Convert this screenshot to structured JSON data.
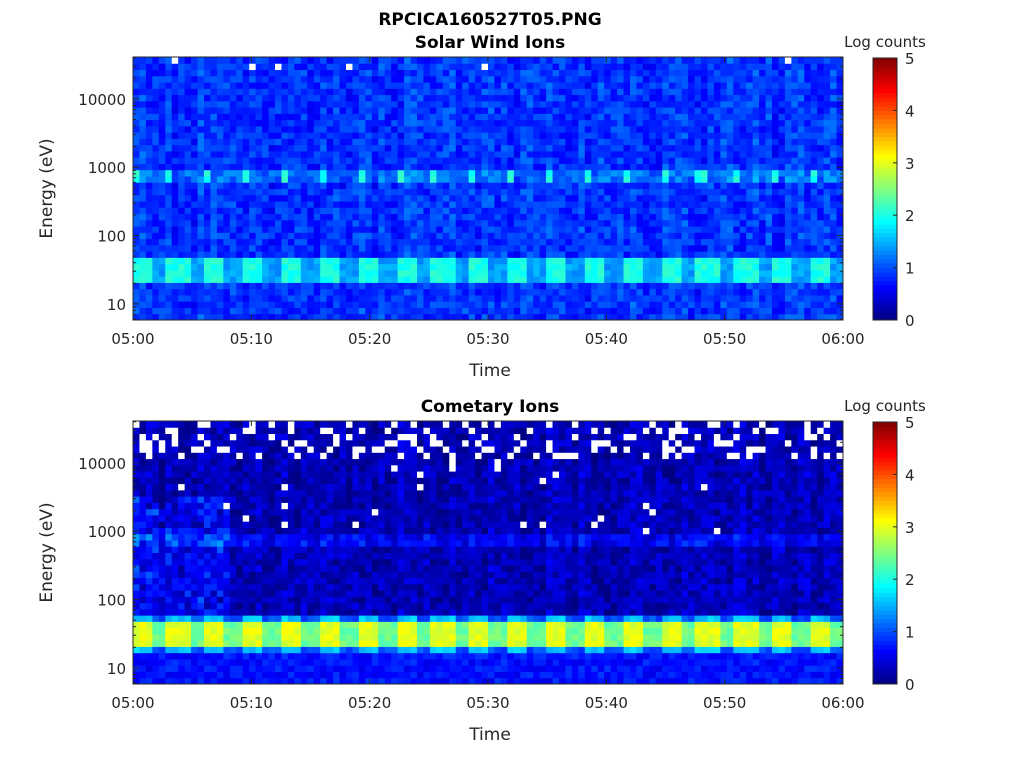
{
  "figure_title": "RPCICA160527T05.PNG",
  "chart_data": [
    {
      "type": "heatmap",
      "title": "Solar Wind Ions",
      "xlabel": "Time",
      "ylabel": "Energy (eV)",
      "x_ticks": [
        "05:00",
        "05:10",
        "05:20",
        "05:30",
        "05:40",
        "05:50",
        "06:00"
      ],
      "xlim_minutes": [
        0,
        60
      ],
      "y_scale": "log",
      "ylim": [
        5.8,
        41000
      ],
      "y_ticks": [
        "10",
        "100",
        "1000",
        "10000"
      ],
      "y_tick_values": [
        10,
        100,
        1000,
        10000
      ],
      "colorbar": {
        "label": "Log counts",
        "range": [
          0,
          5
        ],
        "ticks": [
          "0",
          "1",
          "2",
          "3",
          "4",
          "5"
        ],
        "colormap": "jet"
      },
      "background_log_counts": 0.75,
      "pulse_period_minutes": 3.2,
      "features": [
        {
          "name": "solar wind peak",
          "energy_range_eV": [
            600,
            900
          ],
          "log_counts": 2.0,
          "pulsed": true
        },
        {
          "name": "low energy band",
          "energy_range_eV": [
            22,
            45
          ],
          "log_counts": 2.0,
          "pulsed": true
        },
        {
          "name": "low energy floor",
          "energy_range_eV": [
            5.8,
            20
          ],
          "log_counts": 0.6,
          "pulsed": false
        }
      ],
      "missing_data_above_eV": null
    },
    {
      "type": "heatmap",
      "title": "Cometary Ions",
      "xlabel": "Time",
      "ylabel": "Energy (eV)",
      "x_ticks": [
        "05:00",
        "05:10",
        "05:20",
        "05:30",
        "05:40",
        "05:50",
        "06:00"
      ],
      "xlim_minutes": [
        0,
        60
      ],
      "y_scale": "log",
      "ylim": [
        5.8,
        41000
      ],
      "y_ticks": [
        "10",
        "100",
        "1000",
        "10000"
      ],
      "y_tick_values": [
        10,
        100,
        1000,
        10000
      ],
      "colorbar": {
        "label": "Log counts",
        "range": [
          0,
          5
        ],
        "ticks": [
          "0",
          "1",
          "2",
          "3",
          "4",
          "5"
        ],
        "colormap": "jet"
      },
      "background_log_counts": 0.15,
      "pulse_period_minutes": 3.2,
      "features": [
        {
          "name": "cometary ion band",
          "energy_range_eV": [
            22,
            45
          ],
          "log_counts": 3.0,
          "pulsed": true
        },
        {
          "name": "band edges",
          "energy_range_eV": [
            18,
            55
          ],
          "log_counts": 1.6,
          "pulsed": true
        },
        {
          "name": "low energy floor",
          "energy_range_eV": [
            5.8,
            18
          ],
          "log_counts": 0.7,
          "pulsed": false
        },
        {
          "name": "weak solar wind",
          "energy_range_eV": [
            650,
            900
          ],
          "log_counts": 0.8,
          "pulsed": true
        }
      ],
      "missing_data_above_eV": 12000
    }
  ]
}
